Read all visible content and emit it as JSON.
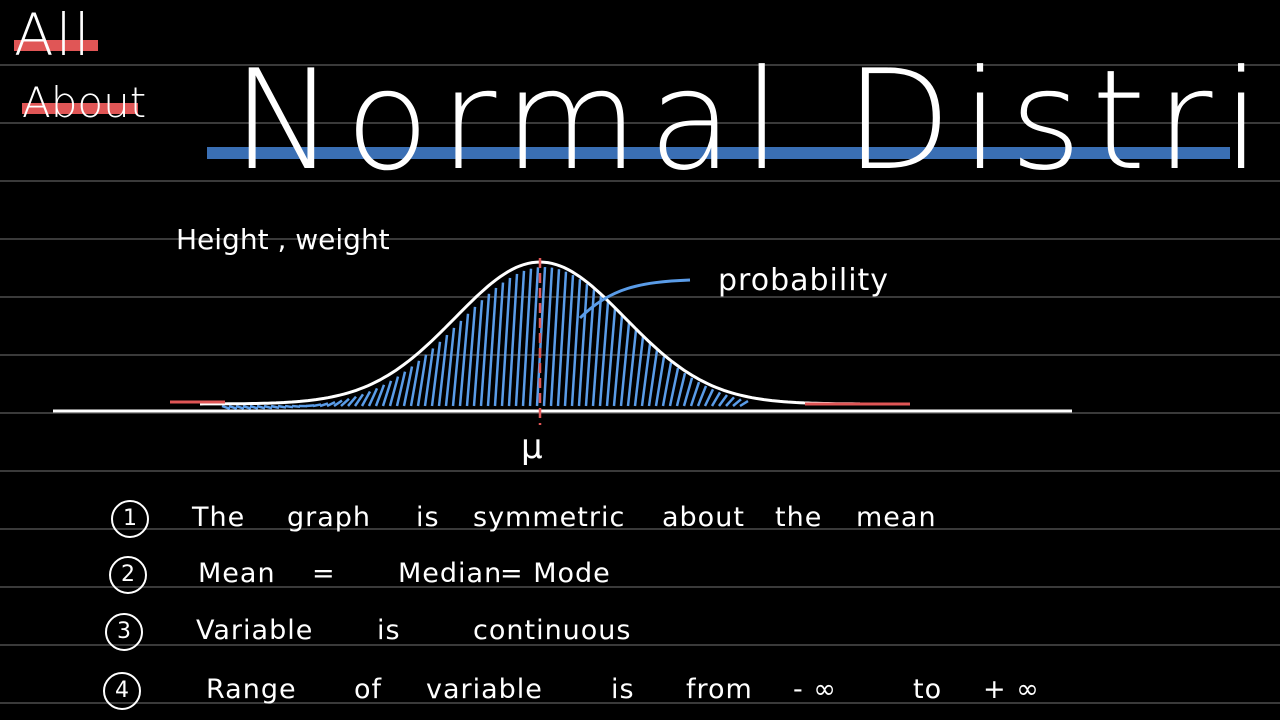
{
  "badge": {
    "line1": "All",
    "line2": "About",
    "strike_color": "#e05656"
  },
  "title": {
    "text": "Normal Distribution",
    "strike_color": "#3a6fb4"
  },
  "figure": {
    "axis_label": "Height , weight",
    "mean_label": "μ",
    "shade_label": "probability",
    "curve_color": "#ffffff",
    "shade_color": "#5a9ce8",
    "tail_color": "#e05656",
    "mean_line_color": "#e05656"
  },
  "properties": [
    {
      "number": "1",
      "words": [
        "The",
        "graph",
        "is",
        "symmetric",
        "about",
        "the",
        "mean"
      ]
    },
    {
      "number": "2",
      "words": [
        "Mean",
        "=",
        "Median",
        "= Mode"
      ]
    },
    {
      "number": "3",
      "words": [
        "Variable",
        "is",
        "continuous"
      ]
    },
    {
      "number": "4",
      "words": [
        "Range",
        "of",
        "variable",
        "is",
        "from",
        "- ∞",
        "to",
        "+ ∞"
      ]
    }
  ]
}
